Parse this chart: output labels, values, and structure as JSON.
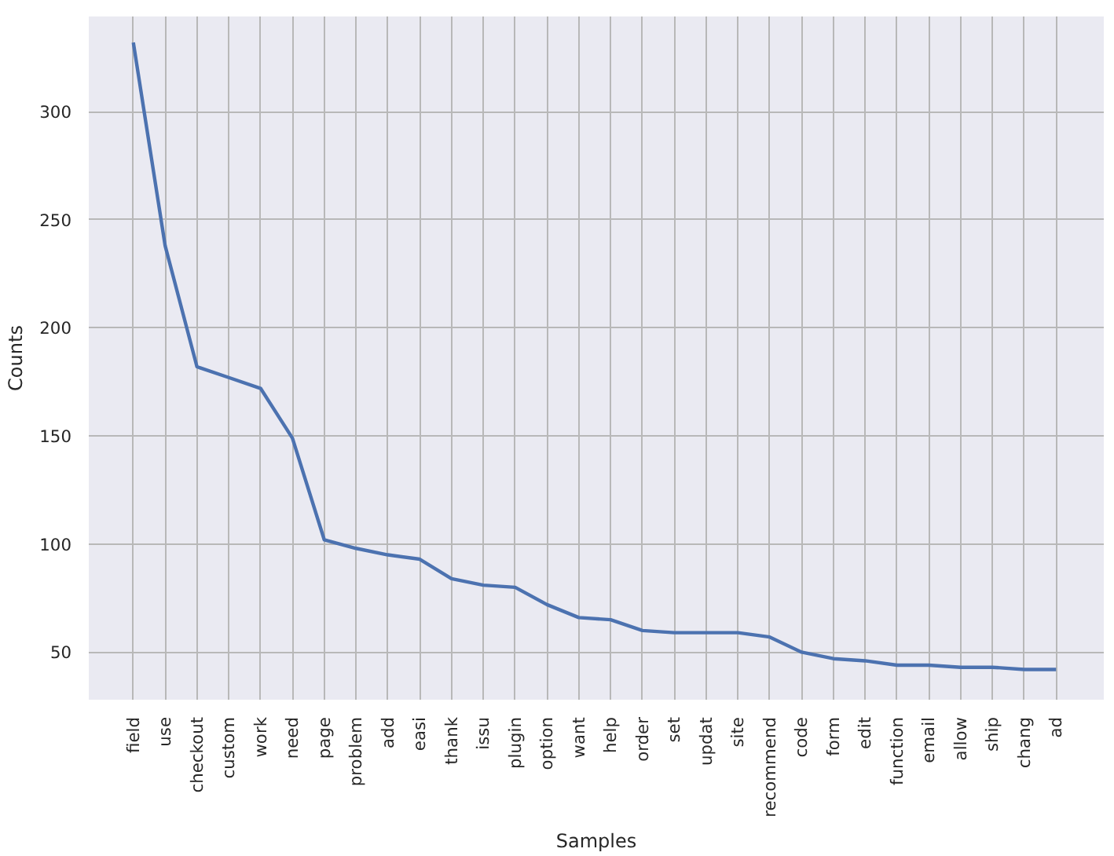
{
  "chart_data": {
    "type": "line",
    "xlabel": "Samples",
    "ylabel": "Counts",
    "categories": [
      "field",
      "use",
      "checkout",
      "custom",
      "work",
      "need",
      "page",
      "problem",
      "add",
      "easi",
      "thank",
      "issu",
      "plugin",
      "option",
      "want",
      "help",
      "order",
      "set",
      "updat",
      "site",
      "recommend",
      "code",
      "form",
      "edit",
      "function",
      "email",
      "allow",
      "ship",
      "chang",
      "ad"
    ],
    "values": [
      332,
      238,
      182,
      177,
      172,
      149,
      102,
      98,
      95,
      93,
      84,
      81,
      80,
      72,
      66,
      65,
      60,
      59,
      59,
      59,
      57,
      50,
      47,
      46,
      44,
      44,
      43,
      43,
      42,
      42
    ],
    "color": "#4c72b0",
    "ylim": [
      28,
      344
    ],
    "yticks": [
      50,
      100,
      150,
      200,
      250,
      300
    ],
    "grid": true,
    "marker": "none",
    "line_style": "solid"
  }
}
